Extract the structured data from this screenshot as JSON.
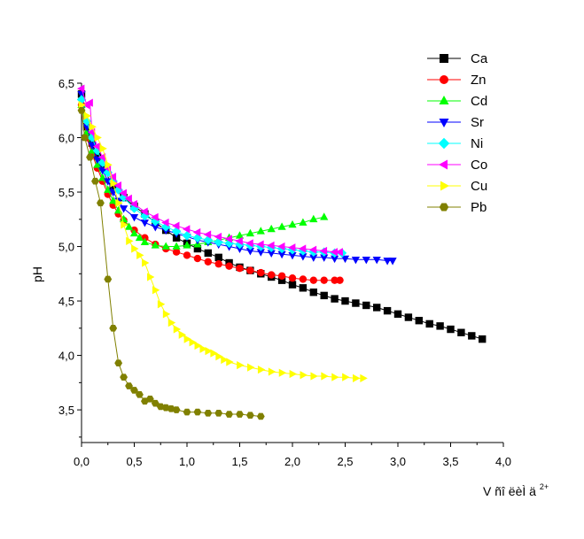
{
  "chart_data": {
    "type": "line",
    "title": "",
    "xlabel": "V",
    "xlabel_garbled": "ñî ëèÌ ä",
    "xlabel_sup": "2+",
    "ylabel": "pH",
    "xlim": [
      0,
      4.0
    ],
    "ylim": [
      3.2,
      6.5
    ],
    "xticks": [
      0.0,
      0.5,
      1.0,
      1.5,
      2.0,
      2.5,
      3.0,
      3.5,
      4.0
    ],
    "xtick_labels": [
      "0,0",
      "0,5",
      "1,0",
      "1,5",
      "2,0",
      "2,5",
      "3,0",
      "3,5",
      "4,0"
    ],
    "yticks": [
      3.5,
      4.0,
      4.5,
      5.0,
      5.5,
      6.0,
      6.5
    ],
    "ytick_labels": [
      "3,5",
      "4,0",
      "4,5",
      "5,0",
      "5,5",
      "6,0",
      "6,5"
    ],
    "grid": false,
    "legend_position": "top-right",
    "series": [
      {
        "name": "Ca",
        "color": "#000000",
        "marker": "square",
        "points": [
          [
            0,
            6.4
          ],
          [
            0.05,
            6.1
          ],
          [
            0.1,
            5.95
          ],
          [
            0.15,
            5.83
          ],
          [
            0.2,
            5.73
          ],
          [
            0.3,
            5.55
          ],
          [
            0.4,
            5.45
          ],
          [
            0.5,
            5.37
          ],
          [
            0.6,
            5.3
          ],
          [
            0.7,
            5.22
          ],
          [
            0.8,
            5.15
          ],
          [
            0.9,
            5.08
          ],
          [
            1.0,
            5.03
          ],
          [
            1.1,
            4.98
          ],
          [
            1.2,
            4.94
          ],
          [
            1.3,
            4.9
          ],
          [
            1.4,
            4.85
          ],
          [
            1.5,
            4.81
          ],
          [
            1.6,
            4.78
          ],
          [
            1.7,
            4.75
          ],
          [
            1.8,
            4.72
          ],
          [
            1.9,
            4.69
          ],
          [
            2.0,
            4.65
          ],
          [
            2.1,
            4.62
          ],
          [
            2.2,
            4.58
          ],
          [
            2.3,
            4.55
          ],
          [
            2.4,
            4.52
          ],
          [
            2.5,
            4.5
          ],
          [
            2.6,
            4.48
          ],
          [
            2.7,
            4.46
          ],
          [
            2.8,
            4.44
          ],
          [
            2.9,
            4.41
          ],
          [
            3.0,
            4.38
          ],
          [
            3.1,
            4.35
          ],
          [
            3.2,
            4.32
          ],
          [
            3.3,
            4.29
          ],
          [
            3.4,
            4.27
          ],
          [
            3.5,
            4.24
          ],
          [
            3.6,
            4.21
          ],
          [
            3.7,
            4.18
          ],
          [
            3.8,
            4.15
          ]
        ]
      },
      {
        "name": "Zn",
        "color": "#ff0000",
        "marker": "circle",
        "points": [
          [
            0,
            6.3
          ],
          [
            0.05,
            6.0
          ],
          [
            0.1,
            5.85
          ],
          [
            0.15,
            5.72
          ],
          [
            0.2,
            5.6
          ],
          [
            0.25,
            5.48
          ],
          [
            0.3,
            5.38
          ],
          [
            0.35,
            5.3
          ],
          [
            0.4,
            5.24
          ],
          [
            0.5,
            5.15
          ],
          [
            0.6,
            5.08
          ],
          [
            0.7,
            5.02
          ],
          [
            0.8,
            4.98
          ],
          [
            0.9,
            4.95
          ],
          [
            1.0,
            4.92
          ],
          [
            1.1,
            4.89
          ],
          [
            1.2,
            4.86
          ],
          [
            1.3,
            4.84
          ],
          [
            1.4,
            4.82
          ],
          [
            1.5,
            4.8
          ],
          [
            1.6,
            4.78
          ],
          [
            1.7,
            4.76
          ],
          [
            1.8,
            4.74
          ],
          [
            1.9,
            4.73
          ],
          [
            2.0,
            4.71
          ],
          [
            2.1,
            4.7
          ],
          [
            2.2,
            4.69
          ],
          [
            2.3,
            4.69
          ],
          [
            2.4,
            4.69
          ],
          [
            2.45,
            4.69
          ]
        ]
      },
      {
        "name": "Cd",
        "color": "#00ff00",
        "marker": "triangle-up",
        "points": [
          [
            0,
            6.3
          ],
          [
            0.05,
            6.05
          ],
          [
            0.1,
            5.88
          ],
          [
            0.15,
            5.75
          ],
          [
            0.2,
            5.63
          ],
          [
            0.25,
            5.52
          ],
          [
            0.3,
            5.42
          ],
          [
            0.35,
            5.33
          ],
          [
            0.4,
            5.25
          ],
          [
            0.45,
            5.18
          ],
          [
            0.5,
            5.12
          ],
          [
            0.55,
            5.08
          ],
          [
            0.6,
            5.04
          ],
          [
            0.7,
            5.01
          ],
          [
            0.8,
            5.0
          ],
          [
            0.9,
            5.0
          ],
          [
            1.0,
            5.01
          ],
          [
            1.1,
            5.02
          ],
          [
            1.2,
            5.04
          ],
          [
            1.3,
            5.06
          ],
          [
            1.4,
            5.08
          ],
          [
            1.5,
            5.1
          ],
          [
            1.6,
            5.12
          ],
          [
            1.7,
            5.14
          ],
          [
            1.8,
            5.16
          ],
          [
            1.9,
            5.18
          ],
          [
            2.0,
            5.2
          ],
          [
            2.1,
            5.22
          ],
          [
            2.2,
            5.25
          ],
          [
            2.3,
            5.27
          ]
        ]
      },
      {
        "name": "Sr",
        "color": "#0000ff",
        "marker": "triangle-down",
        "points": [
          [
            0,
            6.4
          ],
          [
            0.05,
            6.1
          ],
          [
            0.1,
            5.93
          ],
          [
            0.15,
            5.8
          ],
          [
            0.2,
            5.7
          ],
          [
            0.25,
            5.6
          ],
          [
            0.3,
            5.5
          ],
          [
            0.35,
            5.42
          ],
          [
            0.4,
            5.35
          ],
          [
            0.5,
            5.27
          ],
          [
            0.6,
            5.22
          ],
          [
            0.7,
            5.18
          ],
          [
            0.8,
            5.15
          ],
          [
            0.9,
            5.12
          ],
          [
            1.0,
            5.09
          ],
          [
            1.1,
            5.06
          ],
          [
            1.2,
            5.04
          ],
          [
            1.3,
            5.02
          ],
          [
            1.4,
            5.0
          ],
          [
            1.5,
            4.98
          ],
          [
            1.6,
            4.96
          ],
          [
            1.7,
            4.95
          ],
          [
            1.8,
            4.94
          ],
          [
            1.9,
            4.93
          ],
          [
            2.0,
            4.92
          ],
          [
            2.1,
            4.91
          ],
          [
            2.2,
            4.9
          ],
          [
            2.3,
            4.9
          ],
          [
            2.4,
            4.89
          ],
          [
            2.5,
            4.89
          ],
          [
            2.6,
            4.88
          ],
          [
            2.7,
            4.88
          ],
          [
            2.8,
            4.88
          ],
          [
            2.9,
            4.87
          ],
          [
            2.95,
            4.87
          ]
        ]
      },
      {
        "name": "Ni",
        "color": "#00ffff",
        "marker": "diamond",
        "points": [
          [
            0,
            6.35
          ],
          [
            0.05,
            6.15
          ],
          [
            0.1,
            6.0
          ],
          [
            0.15,
            5.88
          ],
          [
            0.2,
            5.77
          ],
          [
            0.25,
            5.68
          ],
          [
            0.3,
            5.6
          ],
          [
            0.35,
            5.52
          ],
          [
            0.4,
            5.45
          ],
          [
            0.5,
            5.35
          ],
          [
            0.6,
            5.28
          ],
          [
            0.7,
            5.23
          ],
          [
            0.8,
            5.18
          ],
          [
            0.9,
            5.14
          ],
          [
            1.0,
            5.1
          ],
          [
            1.1,
            5.08
          ],
          [
            1.2,
            5.06
          ],
          [
            1.3,
            5.04
          ],
          [
            1.4,
            5.03
          ],
          [
            1.5,
            5.02
          ],
          [
            1.6,
            5.01
          ],
          [
            1.7,
            5.0
          ],
          [
            1.8,
            4.99
          ],
          [
            1.9,
            4.98
          ],
          [
            2.0,
            4.97
          ],
          [
            2.1,
            4.96
          ],
          [
            2.2,
            4.95
          ],
          [
            2.3,
            4.95
          ],
          [
            2.4,
            4.94
          ],
          [
            2.47,
            4.94
          ]
        ]
      },
      {
        "name": "Co",
        "color": "#ff00ff",
        "marker": "triangle-left",
        "points": [
          [
            0,
            6.45
          ],
          [
            0.05,
            6.3
          ],
          [
            0.08,
            6.32
          ],
          [
            0.1,
            6.05
          ],
          [
            0.15,
            5.92
          ],
          [
            0.2,
            5.82
          ],
          [
            0.25,
            5.72
          ],
          [
            0.3,
            5.64
          ],
          [
            0.35,
            5.56
          ],
          [
            0.4,
            5.49
          ],
          [
            0.45,
            5.44
          ],
          [
            0.5,
            5.39
          ],
          [
            0.6,
            5.32
          ],
          [
            0.7,
            5.27
          ],
          [
            0.8,
            5.22
          ],
          [
            0.9,
            5.19
          ],
          [
            1.0,
            5.16
          ],
          [
            1.1,
            5.13
          ],
          [
            1.2,
            5.11
          ],
          [
            1.3,
            5.09
          ],
          [
            1.4,
            5.07
          ],
          [
            1.5,
            5.05
          ],
          [
            1.6,
            5.03
          ],
          [
            1.7,
            5.02
          ],
          [
            1.8,
            5.01
          ],
          [
            1.9,
            5.0
          ],
          [
            2.0,
            4.99
          ],
          [
            2.1,
            4.98
          ],
          [
            2.2,
            4.97
          ],
          [
            2.3,
            4.96
          ],
          [
            2.4,
            4.95
          ],
          [
            2.45,
            4.95
          ]
        ]
      },
      {
        "name": "Cu",
        "color": "#ffff00",
        "marker": "triangle-right",
        "points": [
          [
            0,
            6.3
          ],
          [
            0.05,
            6.2
          ],
          [
            0.1,
            6.1
          ],
          [
            0.15,
            6.0
          ],
          [
            0.2,
            5.9
          ],
          [
            0.25,
            5.75
          ],
          [
            0.3,
            5.58
          ],
          [
            0.35,
            5.4
          ],
          [
            0.4,
            5.2
          ],
          [
            0.45,
            5.05
          ],
          [
            0.5,
            4.98
          ],
          [
            0.55,
            4.92
          ],
          [
            0.6,
            4.85
          ],
          [
            0.65,
            4.72
          ],
          [
            0.7,
            4.6
          ],
          [
            0.75,
            4.47
          ],
          [
            0.8,
            4.38
          ],
          [
            0.85,
            4.3
          ],
          [
            0.9,
            4.24
          ],
          [
            0.95,
            4.19
          ],
          [
            1.0,
            4.15
          ],
          [
            1.05,
            4.12
          ],
          [
            1.1,
            4.09
          ],
          [
            1.15,
            4.06
          ],
          [
            1.2,
            4.04
          ],
          [
            1.25,
            4.02
          ],
          [
            1.3,
            3.99
          ],
          [
            1.35,
            3.96
          ],
          [
            1.4,
            3.94
          ],
          [
            1.5,
            3.91
          ],
          [
            1.6,
            3.89
          ],
          [
            1.7,
            3.87
          ],
          [
            1.8,
            3.85
          ],
          [
            1.9,
            3.84
          ],
          [
            2.0,
            3.83
          ],
          [
            2.1,
            3.82
          ],
          [
            2.2,
            3.81
          ],
          [
            2.3,
            3.81
          ],
          [
            2.4,
            3.8
          ],
          [
            2.5,
            3.8
          ],
          [
            2.6,
            3.79
          ],
          [
            2.67,
            3.79
          ]
        ]
      },
      {
        "name": "Pb",
        "color": "#808000",
        "marker": "hexagon",
        "points": [
          [
            0,
            6.25
          ],
          [
            0.03,
            6.0
          ],
          [
            0.08,
            5.82
          ],
          [
            0.13,
            5.6
          ],
          [
            0.18,
            5.4
          ],
          [
            0.25,
            4.7
          ],
          [
            0.3,
            4.25
          ],
          [
            0.35,
            3.93
          ],
          [
            0.4,
            3.8
          ],
          [
            0.45,
            3.72
          ],
          [
            0.5,
            3.68
          ],
          [
            0.55,
            3.64
          ],
          [
            0.6,
            3.58
          ],
          [
            0.65,
            3.6
          ],
          [
            0.7,
            3.56
          ],
          [
            0.75,
            3.53
          ],
          [
            0.8,
            3.52
          ],
          [
            0.85,
            3.51
          ],
          [
            0.9,
            3.5
          ],
          [
            1.0,
            3.48
          ],
          [
            1.1,
            3.48
          ],
          [
            1.2,
            3.47
          ],
          [
            1.3,
            3.47
          ],
          [
            1.4,
            3.46
          ],
          [
            1.5,
            3.46
          ],
          [
            1.6,
            3.45
          ],
          [
            1.7,
            3.44
          ]
        ]
      }
    ]
  }
}
